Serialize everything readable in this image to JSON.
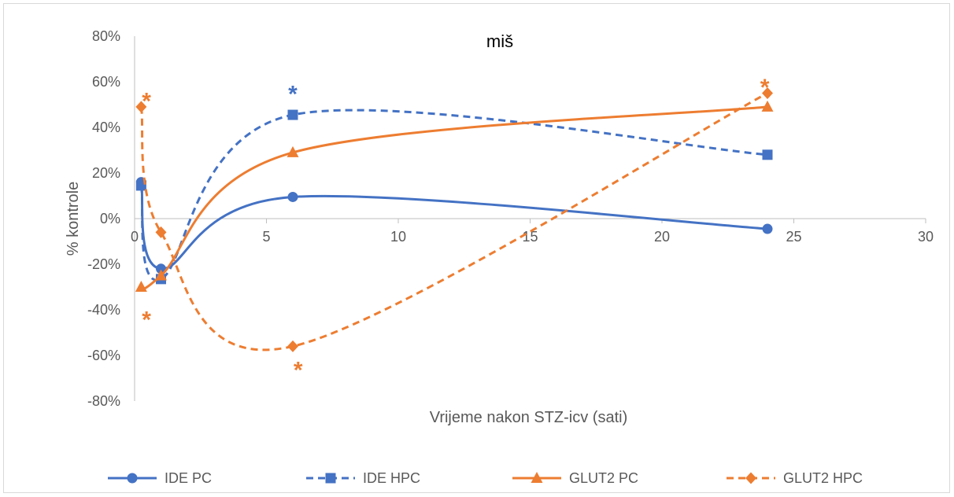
{
  "chart_data": {
    "type": "scatter",
    "title": "miš",
    "xlabel": "Vrijeme nakon STZ-icv (sati)",
    "ylabel": "% kontrole",
    "xlim": [
      0,
      30
    ],
    "ylim": [
      -80,
      80
    ],
    "x_ticks": [
      "0",
      "5",
      "10",
      "15",
      "20",
      "25",
      "30"
    ],
    "y_ticks": [
      "80%",
      "60%",
      "40%",
      "20%",
      "0%",
      "-20%",
      "-40%",
      "-60%",
      "-80%"
    ],
    "legend_position": "bottom",
    "series": [
      {
        "name": "IDE PC",
        "color": "#4472c4",
        "dash": "solid",
        "marker": "circle",
        "x": [
          0.25,
          1,
          6,
          24
        ],
        "y": [
          16,
          -22,
          9.5,
          -4.5
        ]
      },
      {
        "name": "IDE HPC",
        "color": "#4472c4",
        "dash": "dashed",
        "marker": "square",
        "x": [
          0.25,
          1,
          6,
          24
        ],
        "y": [
          14.5,
          -26.5,
          45.5,
          28
        ]
      },
      {
        "name": "GLUT2 PC",
        "color": "#ed7d31",
        "dash": "solid",
        "marker": "triangle",
        "x": [
          0.25,
          1,
          6,
          24
        ],
        "y": [
          -30,
          -25,
          29,
          49
        ]
      },
      {
        "name": "GLUT2 HPC",
        "color": "#ed7d31",
        "dash": "dashed",
        "marker": "diamond",
        "x": [
          0.25,
          1,
          6,
          24
        ],
        "y": [
          49,
          -6,
          -56,
          55
        ]
      }
    ],
    "annotations": [
      {
        "text": "*",
        "x": 0.45,
        "y": 53,
        "color": "#ed7d31"
      },
      {
        "text": "*",
        "x": 0.45,
        "y": -43,
        "color": "#ed7d31"
      },
      {
        "text": "*",
        "x": 6,
        "y": 56,
        "color": "#4472c4"
      },
      {
        "text": "*",
        "x": 6.2,
        "y": -65,
        "color": "#ed7d31"
      },
      {
        "text": "*",
        "x": 23.9,
        "y": 59,
        "color": "#ed7d31"
      }
    ]
  }
}
